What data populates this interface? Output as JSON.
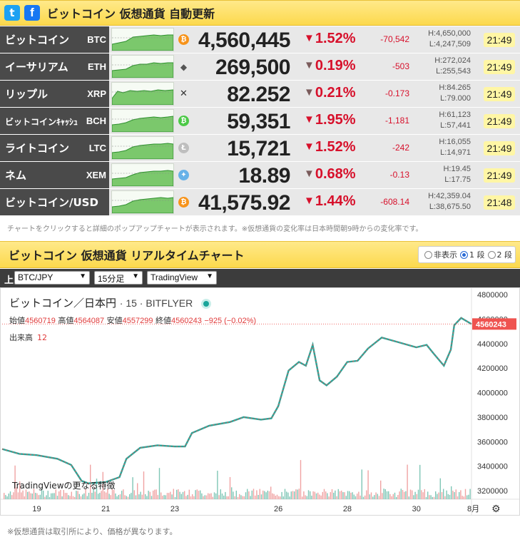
{
  "header": {
    "twitter_icon": "twitter-icon",
    "facebook_icon": "facebook-icon",
    "title": "ビットコイン 仮想通貨 自動更新"
  },
  "rows": [
    {
      "name": "ビットコイン",
      "symbol": "BTC",
      "icon": "bitcoin-icon",
      "icon_color": "#f7931a",
      "price": "4,560,445",
      "pct": "1.52%",
      "change": "-70,542",
      "high": "H:4,650,000",
      "low": "L:4,247,509",
      "time": "21:49",
      "arrow_strong": true
    },
    {
      "name": "イーサリアム",
      "symbol": "ETH",
      "icon": "ethereum-icon",
      "icon_color": "#3c3c3d",
      "price": "269,500",
      "pct": "0.19%",
      "change": "-503",
      "high": "H:272,024",
      "low": "L:255,543",
      "time": "21:49",
      "arrow_strong": false
    },
    {
      "name": "リップル",
      "symbol": "XRP",
      "icon": "ripple-icon",
      "icon_color": "#333333",
      "price": "82.252",
      "pct": "0.21%",
      "change": "-0.173",
      "high": "H:84.265",
      "low": "L:79.000",
      "time": "21:49",
      "arrow_strong": false
    },
    {
      "name": "ビットコインｷｬｯｼｭ",
      "symbol": "BCH",
      "icon": "bitcoin-cash-icon",
      "icon_color": "#4cc947",
      "price": "59,351",
      "pct": "1.95%",
      "change": "-1,181",
      "high": "H:61,123",
      "low": "L:57,441",
      "time": "21:49",
      "arrow_strong": true
    },
    {
      "name": "ライトコイン",
      "symbol": "LTC",
      "icon": "litecoin-icon",
      "icon_color": "#bebebe",
      "price": "15,721",
      "pct": "1.52%",
      "change": "-242",
      "high": "H:16,055",
      "low": "L:14,971",
      "time": "21:49",
      "arrow_strong": true
    },
    {
      "name": "ネム",
      "symbol": "XEM",
      "icon": "nem-icon",
      "icon_color": "#67b2e8",
      "price": "18.89",
      "pct": "0.68%",
      "change": "-0.13",
      "high": "H:19.45",
      "low": "L:17.75",
      "time": "21:49",
      "arrow_strong": false
    },
    {
      "name": "ビットコイン/USD",
      "symbol": "",
      "icon": "bitcoin-icon",
      "icon_color": "#f7931a",
      "price": "41,575.92",
      "pct": "1.44%",
      "change": "-608.14",
      "high": "H:42,359.04",
      "low": "L:38,675.50",
      "time": "21:48",
      "arrow_strong": true
    }
  ],
  "note_top": "チャートをクリックすると詳細のポップアップチャートが表示されます。※仮想通貨の変化率は日本時間朝9時からの変化率です。",
  "chart_section": {
    "title": "ビットコイン 仮想通貨 リアルタイムチャート",
    "radio": [
      "非表示",
      "1 段",
      "2 段"
    ],
    "radio_selected": 1
  },
  "toolbar": {
    "label": "上",
    "pair": "BTC/JPY",
    "interval": "15分足",
    "source": "TradingView"
  },
  "tv": {
    "name": "ビットコイン／日本円",
    "meta": "· 15 · BITFLYER",
    "open_label": "始値",
    "open": "4560719",
    "high_label": "高値",
    "high": "4564087",
    "low_label": "安値",
    "low": "4557299",
    "close_label": "終値",
    "close": "4560243",
    "change": "−925 (−0.02%)",
    "volume_label": "出来高",
    "volume": "12",
    "brand": "TradingViewの更なる特徴",
    "last_price": "4560243",
    "settings_icon": "gear-icon"
  },
  "chart_data": {
    "type": "line",
    "title": "ビットコイン／日本円 · 15 · BITFLYER",
    "xlabel": "",
    "ylabel": "",
    "x_ticks": [
      "19",
      "21",
      "23",
      "26",
      "28",
      "30",
      "8月"
    ],
    "y_ticks": [
      3200000,
      3400000,
      3600000,
      3800000,
      4000000,
      4200000,
      4400000,
      4600000,
      4800000
    ],
    "ylim": [
      3130000,
      4830000
    ],
    "xlim": [
      18,
      31.6
    ],
    "series": [
      {
        "x": [
          18.0,
          18.5,
          19.0,
          19.6,
          20.0,
          20.3,
          20.5,
          21.0,
          21.4,
          21.6,
          22.0,
          22.5,
          23.0,
          23.3,
          23.5,
          24.0,
          24.6,
          25.0,
          25.5,
          25.8,
          26.0,
          26.3,
          26.6,
          26.8,
          27.0,
          27.2,
          27.4,
          27.7,
          28.0,
          28.3,
          28.6,
          29.0,
          29.5,
          30.0,
          30.3,
          30.5,
          30.8,
          31.0,
          31.1,
          31.3,
          31.6
        ],
        "y": [
          3540000,
          3500000,
          3490000,
          3460000,
          3410000,
          3280000,
          3260000,
          3270000,
          3310000,
          3460000,
          3550000,
          3570000,
          3560000,
          3560000,
          3670000,
          3730000,
          3760000,
          3800000,
          3780000,
          3790000,
          3890000,
          4180000,
          4250000,
          4220000,
          4390000,
          4100000,
          4060000,
          4130000,
          4250000,
          4260000,
          4360000,
          4450000,
          4410000,
          4370000,
          4390000,
          4320000,
          4220000,
          4350000,
          4550000,
          4610000,
          4560000
        ]
      }
    ],
    "grid": false,
    "legend": "none"
  },
  "note_bottom": "※仮想通貨は取引所により、価格が異なります。"
}
